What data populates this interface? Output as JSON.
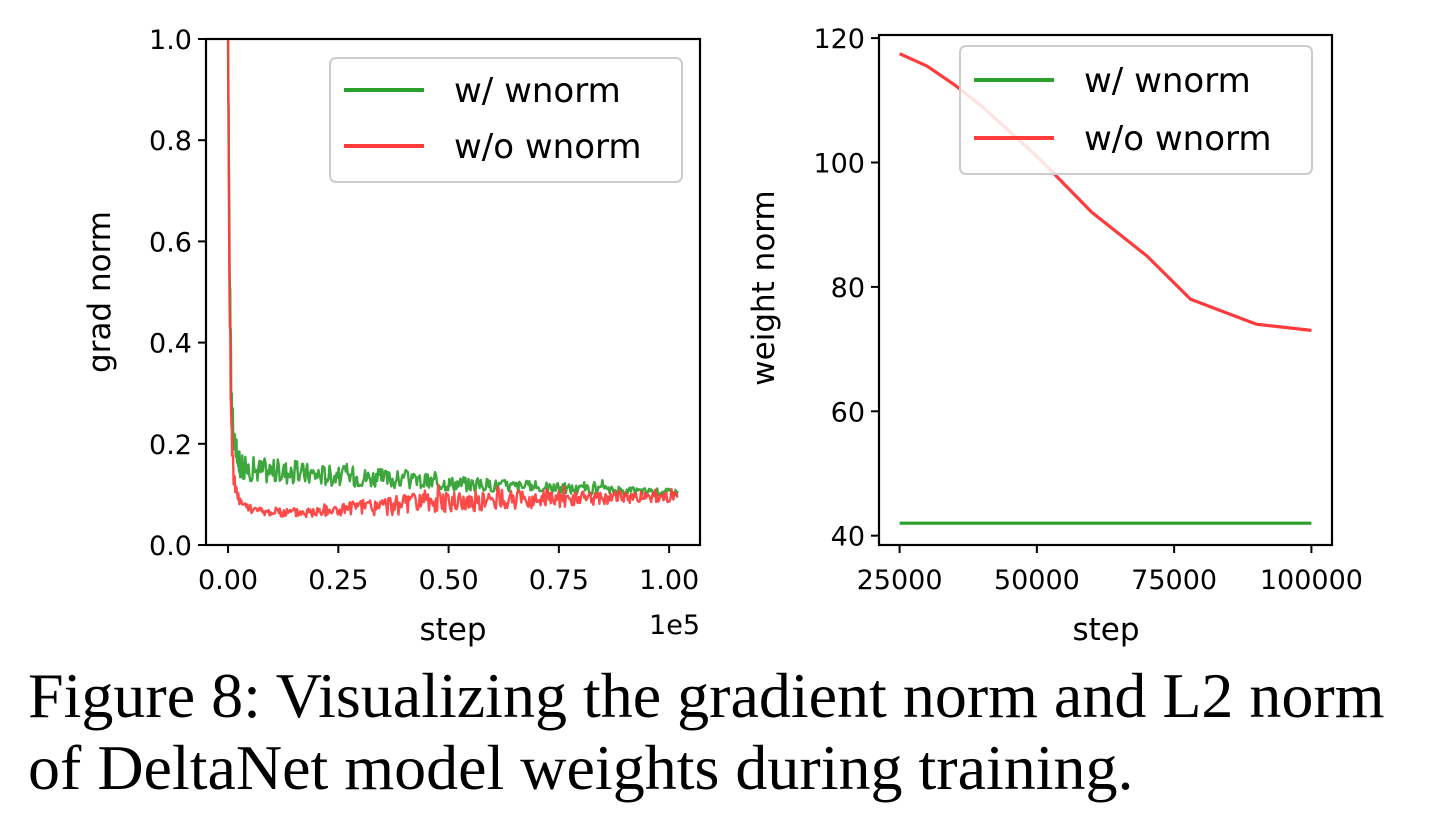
{
  "caption": "Figure 8: Visualizing the gradient norm and L2 norm of DeltaNet model weights during training.",
  "chart_data": [
    {
      "type": "line",
      "title": "",
      "xlabel": "step",
      "ylabel": "grad norm",
      "x_offset_label": "1e5",
      "xlim": [
        -5000,
        107000
      ],
      "ylim": [
        0.0,
        1.0
      ],
      "xticks": [
        0,
        25000,
        50000,
        75000,
        100000
      ],
      "xtick_labels": [
        "0.00",
        "0.25",
        "0.50",
        "0.75",
        "1.00"
      ],
      "yticks": [
        0.0,
        0.2,
        0.4,
        0.6,
        0.8,
        1.0
      ],
      "ytick_labels": [
        "0.0",
        "0.2",
        "0.4",
        "0.6",
        "0.8",
        "1.0"
      ],
      "legend_position": "top-right",
      "series": [
        {
          "name": "w/ wnorm",
          "color": "#2ca02c",
          "x": [
            0,
            300,
            700,
            1200,
            2000,
            3000,
            5000,
            8000,
            12000,
            20000,
            30000,
            40000,
            50000,
            60000,
            70000,
            80000,
            90000,
            100000,
            102000
          ],
          "center": [
            0.98,
            0.62,
            0.32,
            0.22,
            0.17,
            0.155,
            0.15,
            0.148,
            0.145,
            0.14,
            0.135,
            0.128,
            0.122,
            0.118,
            0.114,
            0.11,
            0.107,
            0.105,
            0.104
          ],
          "noise": [
            0.02,
            0.05,
            0.04,
            0.03,
            0.025,
            0.025,
            0.025,
            0.025,
            0.025,
            0.022,
            0.02,
            0.018,
            0.015,
            0.013,
            0.012,
            0.01,
            0.008,
            0.007,
            0.007
          ]
        },
        {
          "name": "w/o wnorm",
          "color": "#ff3b3b",
          "x": [
            0,
            300,
            700,
            1200,
            2000,
            3000,
            5000,
            8000,
            12000,
            20000,
            30000,
            40000,
            50000,
            60000,
            70000,
            80000,
            90000,
            100000,
            102000
          ],
          "center": [
            1.0,
            0.55,
            0.25,
            0.14,
            0.1,
            0.085,
            0.072,
            0.066,
            0.064,
            0.066,
            0.073,
            0.08,
            0.085,
            0.088,
            0.09,
            0.092,
            0.094,
            0.095,
            0.095
          ],
          "noise": [
            0.0,
            0.05,
            0.04,
            0.02,
            0.012,
            0.01,
            0.008,
            0.008,
            0.009,
            0.012,
            0.018,
            0.02,
            0.02,
            0.02,
            0.018,
            0.015,
            0.012,
            0.01,
            0.01
          ]
        }
      ]
    },
    {
      "type": "line",
      "title": "",
      "xlabel": "step",
      "ylabel": "weight norm",
      "xlim": [
        21250,
        103750
      ],
      "ylim": [
        38.5,
        120.5
      ],
      "xticks": [
        25000,
        50000,
        75000,
        100000
      ],
      "xtick_labels": [
        "25000",
        "50000",
        "75000",
        "100000"
      ],
      "yticks": [
        40,
        60,
        80,
        100,
        120
      ],
      "ytick_labels": [
        "40",
        "60",
        "80",
        "100",
        "120"
      ],
      "legend_position": "top-right",
      "series": [
        {
          "name": "w/ wnorm",
          "color": "#2ca02c",
          "x": [
            25000,
            100000
          ],
          "y": [
            42,
            42
          ]
        },
        {
          "name": "w/o wnorm",
          "color": "#ff3b3b",
          "x": [
            25000,
            30000,
            35000,
            40000,
            50000,
            60000,
            70000,
            78000,
            90000,
            100000
          ],
          "y": [
            117.5,
            115.5,
            112.5,
            109,
            101,
            92,
            85,
            78,
            74,
            73
          ]
        }
      ]
    }
  ]
}
